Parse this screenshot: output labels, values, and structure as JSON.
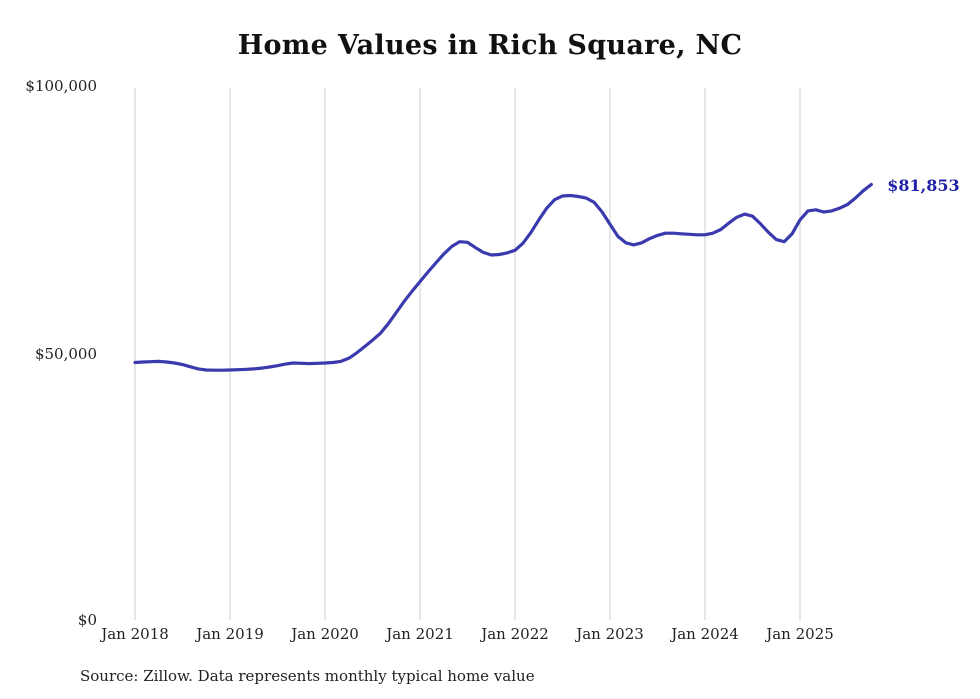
{
  "chart_data": {
    "type": "line",
    "title": "Home Values in Rich Square, NC",
    "series_name": "Monthly typical home value",
    "x_start": "2018-01",
    "x_tick_labels": [
      "Jan 2018",
      "Jan 2019",
      "Jan 2020",
      "Jan 2021",
      "Jan 2022",
      "Jan 2023",
      "Jan 2024",
      "Jan 2025"
    ],
    "months_per_tick": 12,
    "y_tick_labels": [
      "$0",
      "$50,000",
      "$100,000"
    ],
    "ylim": [
      0,
      100000
    ],
    "grid": "vertical-only",
    "legend": "none",
    "line_color": "#3a3aae",
    "end_label_color": "#2222a8",
    "end_label": "$81,853",
    "values": [
      48400,
      48500,
      48550,
      48600,
      48500,
      48300,
      48000,
      47600,
      47200,
      47000,
      46950,
      46950,
      47000,
      47050,
      47100,
      47200,
      47350,
      47550,
      47800,
      48100,
      48300,
      48250,
      48200,
      48250,
      48300,
      48400,
      48600,
      49200,
      50200,
      51400,
      52600,
      53900,
      55700,
      57800,
      59900,
      61800,
      63600,
      65400,
      67100,
      68800,
      70200,
      71100,
      71000,
      70000,
      69100,
      68600,
      68700,
      69000,
      69500,
      70800,
      72800,
      75200,
      77400,
      79000,
      79700,
      79800,
      79600,
      79300,
      78500,
      76700,
      74400,
      72100,
      70900,
      70500,
      70900,
      71700,
      72300,
      72700,
      72700,
      72600,
      72500,
      72400,
      72400,
      72700,
      73400,
      74600,
      75700,
      76300,
      75900,
      74500,
      72900,
      71500,
      71100,
      72600,
      75200,
      76900,
      77100,
      76700,
      76900,
      77400,
      78100,
      79300,
      80700,
      81853
    ]
  },
  "source_note": "Source: Zillow. Data represents monthly typical home value"
}
